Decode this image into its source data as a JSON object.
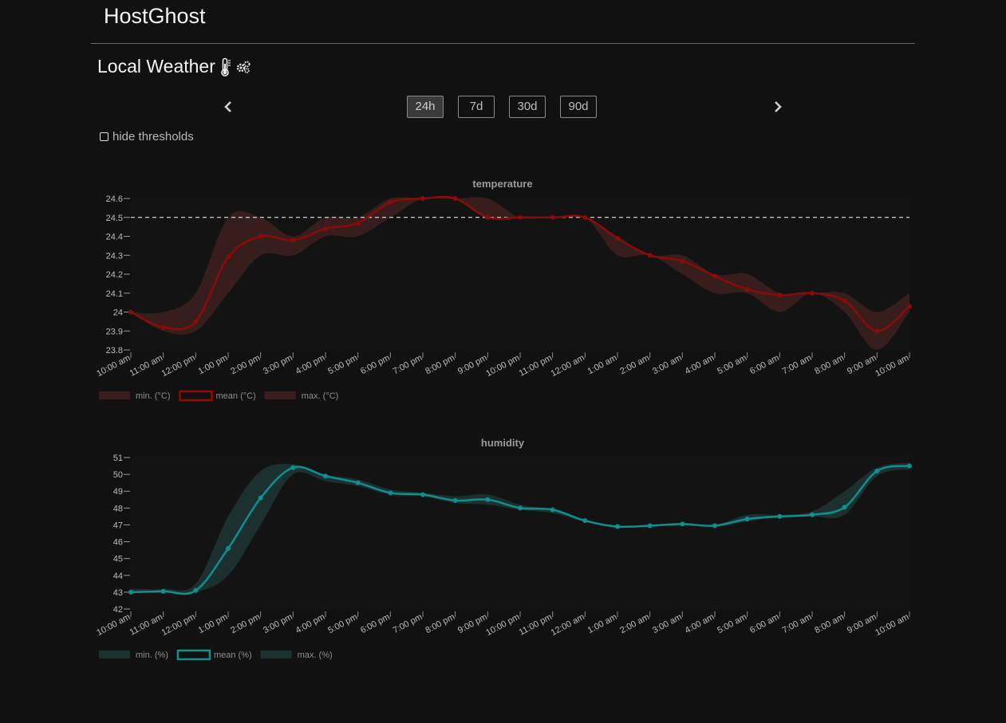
{
  "app": {
    "title": "HostGhost"
  },
  "page": {
    "title": "Local Weather",
    "icons": [
      "thermometer-icon",
      "gears-icon"
    ]
  },
  "nav": {
    "prev_icon": "chevron-left-icon",
    "next_icon": "chevron-right-icon"
  },
  "ranges": [
    {
      "label": "24h",
      "active": true
    },
    {
      "label": "7d",
      "active": false
    },
    {
      "label": "30d",
      "active": false
    },
    {
      "label": "90d",
      "active": false
    }
  ],
  "thresholds_toggle": {
    "label": "hide thresholds",
    "checked": false
  },
  "colors": {
    "temperature": "#8b0a0a",
    "temperature_band": "#3a1e1e",
    "humidity": "#0f8f8f",
    "humidity_band": "#1c3230",
    "threshold": "#ffffff",
    "axis_text": "#bdbdbd"
  },
  "chart_data": [
    {
      "type": "line",
      "title": "temperature",
      "x": [
        "10:00 am",
        "11:00 am",
        "12:00 pm",
        "1:00 pm",
        "2:00 pm",
        "3:00 pm",
        "4:00 pm",
        "5:00 pm",
        "6:00 pm",
        "7:00 pm",
        "8:00 pm",
        "9:00 pm",
        "10:00 pm",
        "11:00 pm",
        "12:00 am",
        "1:00 am",
        "2:00 am",
        "3:00 am",
        "4:00 am",
        "5:00 am",
        "6:00 am",
        "7:00 am",
        "8:00 am",
        "9:00 am",
        "10:00 am"
      ],
      "yticks": [
        23.8,
        23.9,
        24.0,
        24.1,
        24.2,
        24.3,
        24.4,
        24.5,
        24.6
      ],
      "ylim": [
        23.8,
        24.6
      ],
      "threshold": 24.5,
      "series": [
        {
          "name": "min. (°C)",
          "values": [
            24.0,
            23.9,
            23.9,
            24.1,
            24.3,
            24.3,
            24.4,
            24.4,
            24.5,
            24.6,
            24.6,
            24.5,
            24.5,
            24.5,
            24.5,
            24.3,
            24.3,
            24.2,
            24.1,
            24.1,
            24.0,
            24.1,
            24.0,
            23.8,
            24.0
          ]
        },
        {
          "name": "mean (°C)",
          "values": [
            24.0,
            23.92,
            23.95,
            24.29,
            24.4,
            24.38,
            24.44,
            24.47,
            24.58,
            24.6,
            24.6,
            24.5,
            24.5,
            24.5,
            24.5,
            24.39,
            24.3,
            24.27,
            24.19,
            24.12,
            24.09,
            24.1,
            24.06,
            23.9,
            24.03
          ]
        },
        {
          "name": "max. (°C)",
          "values": [
            24.0,
            24.0,
            24.1,
            24.5,
            24.5,
            24.4,
            24.5,
            24.5,
            24.6,
            24.6,
            24.6,
            24.6,
            24.5,
            24.5,
            24.5,
            24.4,
            24.3,
            24.3,
            24.2,
            24.2,
            24.1,
            24.1,
            24.1,
            24.0,
            24.1
          ]
        }
      ]
    },
    {
      "type": "line",
      "title": "humidity",
      "x": [
        "10:00 am",
        "11:00 am",
        "12:00 pm",
        "1:00 pm",
        "2:00 pm",
        "3:00 pm",
        "4:00 pm",
        "5:00 pm",
        "6:00 pm",
        "7:00 pm",
        "8:00 pm",
        "9:00 pm",
        "10:00 pm",
        "11:00 pm",
        "12:00 am",
        "1:00 am",
        "2:00 am",
        "3:00 am",
        "4:00 am",
        "5:00 am",
        "6:00 am",
        "7:00 am",
        "8:00 am",
        "9:00 am",
        "10:00 am"
      ],
      "yticks": [
        42,
        43,
        44,
        45,
        46,
        47,
        48,
        49,
        50,
        51
      ],
      "ylim": [
        42,
        51
      ],
      "series": [
        {
          "name": "min. (%)",
          "values": [
            43,
            43,
            43,
            44,
            47,
            50,
            49.6,
            49.3,
            48.8,
            48.7,
            48.3,
            48.2,
            47.9,
            47.7,
            47.2,
            46.9,
            46.9,
            47,
            46.9,
            47.2,
            47.5,
            47.5,
            47.6,
            49.9,
            50.3
          ]
        },
        {
          "name": "mean (%)",
          "values": [
            43,
            43.05,
            43.1,
            45.6,
            48.6,
            50.4,
            49.9,
            49.5,
            48.9,
            48.8,
            48.45,
            48.5,
            48,
            47.9,
            47.25,
            46.9,
            46.95,
            47.05,
            46.95,
            47.35,
            47.5,
            47.6,
            48.05,
            50.2,
            50.5
          ]
        },
        {
          "name": "max. (%)",
          "values": [
            43.2,
            43.2,
            43.5,
            47.5,
            50.2,
            50.6,
            50,
            49.7,
            49.1,
            48.9,
            48.7,
            48.8,
            48.2,
            47.9,
            47.3,
            46.95,
            47,
            47.1,
            47,
            47.6,
            47.6,
            47.8,
            49,
            50.4,
            50.7
          ]
        }
      ]
    }
  ]
}
